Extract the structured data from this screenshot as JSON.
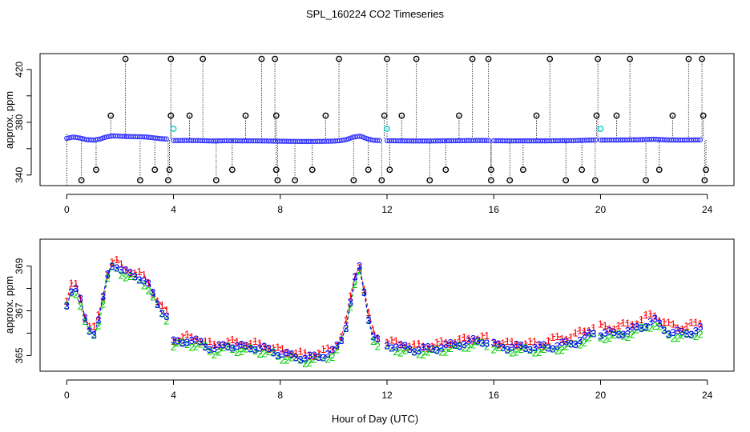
{
  "title": "SPL_160224  CO2 Timeseries",
  "xlabel": "Hour of Day (UTC)",
  "chart_data": [
    {
      "type": "scatter",
      "name": "top-panel",
      "ylabel": "approx. ppm",
      "xlim": [
        -1,
        25
      ],
      "ylim": [
        332,
        432
      ],
      "x_ticks": [
        0,
        4,
        8,
        12,
        16,
        20,
        24
      ],
      "y_ticks": [
        340,
        360,
        380,
        400,
        420
      ],
      "y_tick_labels": [
        "340",
        "",
        "380",
        "",
        "420"
      ],
      "baseline_segments": [
        {
          "x": [
            0,
            0.25,
            0.5,
            0.75,
            1,
            1.25,
            1.5,
            1.75,
            2,
            2.25,
            2.5,
            2.75,
            3,
            3.25,
            3.5,
            3.75
          ],
          "y": [
            367.3,
            368.3,
            367.5,
            366.3,
            366.0,
            366.8,
            368.5,
            369.2,
            368.9,
            368.7,
            368.6,
            368.5,
            368.3,
            367.7,
            367.1,
            366.8
          ]
        },
        {
          "x": [
            4,
            4.5,
            5,
            5.5,
            6,
            6.5,
            7,
            7.5,
            8,
            8.5,
            9,
            9.5,
            10,
            10.25,
            10.5,
            10.75,
            11,
            11.25,
            11.5,
            11.75
          ],
          "y": [
            365.6,
            365.7,
            365.6,
            365.3,
            365.5,
            365.4,
            365.4,
            365.3,
            365.1,
            365.0,
            364.9,
            365.0,
            365.2,
            365.6,
            366.5,
            368.3,
            369.0,
            367.0,
            365.8,
            365.6
          ]
        },
        {
          "x": [
            12,
            12.5,
            13,
            13.5,
            14,
            14.5,
            15,
            15.5,
            15.9
          ],
          "y": [
            365.5,
            365.4,
            365.3,
            365.3,
            365.4,
            365.5,
            365.6,
            365.7,
            365.6
          ]
        },
        {
          "x": [
            16,
            16.5,
            17,
            17.5,
            18,
            18.5,
            19,
            19.5,
            19.9
          ],
          "y": [
            365.5,
            365.4,
            365.4,
            365.4,
            365.4,
            365.5,
            365.6,
            365.9,
            366.1
          ]
        },
        {
          "x": [
            20,
            20.5,
            21,
            21.5,
            22,
            22.5,
            23,
            23.5,
            23.75
          ],
          "y": [
            366.0,
            366.0,
            366.1,
            366.3,
            366.6,
            366.1,
            366.0,
            366.1,
            366.2
          ]
        }
      ],
      "high_spikes": [
        2.2,
        3.9,
        5.1,
        7.3,
        7.8,
        10.2,
        12.0,
        13.1,
        15.2,
        15.8,
        18.1,
        19.9,
        21.1,
        23.3,
        23.8
      ],
      "mid_spikes": [
        1.65,
        3.9,
        4.6,
        6.7,
        7.85,
        9.7,
        11.9,
        12.55,
        14.7,
        17.6,
        19.85,
        20.6,
        22.7,
        23.85
      ],
      "low_spikes_336": [
        0.55,
        2.75,
        3.8,
        5.6,
        7.9,
        8.55,
        10.75,
        11.8,
        13.6,
        15.9,
        16.6,
        18.7,
        19.8,
        21.7,
        23.9
      ],
      "low_spikes_344": [
        1.1,
        3.3,
        3.85,
        6.2,
        7.85,
        9.2,
        11.3,
        12.1,
        14.2,
        15.9,
        17.1,
        19.3,
        22.2,
        23.95
      ],
      "cyan_points": [
        {
          "x": 4.0,
          "y": 375
        },
        {
          "x": 12.0,
          "y": 375
        },
        {
          "x": 20.0,
          "y": 375
        }
      ]
    },
    {
      "type": "line",
      "name": "bottom-panel",
      "ylabel": "approx. ppm",
      "xlim": [
        -1,
        25
      ],
      "ylim": [
        364.3,
        370.2
      ],
      "x_ticks": [
        0,
        4,
        8,
        12,
        16,
        20,
        24
      ],
      "y_ticks": [
        365,
        366,
        367,
        368,
        369
      ],
      "y_tick_labels": [
        "365",
        "",
        "367",
        "",
        "369"
      ],
      "series": [
        {
          "name": "1",
          "color": "#ff0000",
          "offset": 0.25
        },
        {
          "name": "2",
          "color": "#00cc00",
          "offset": -0.25
        },
        {
          "name": "3",
          "color": "#0000ff",
          "offset": 0.0
        }
      ]
    }
  ]
}
